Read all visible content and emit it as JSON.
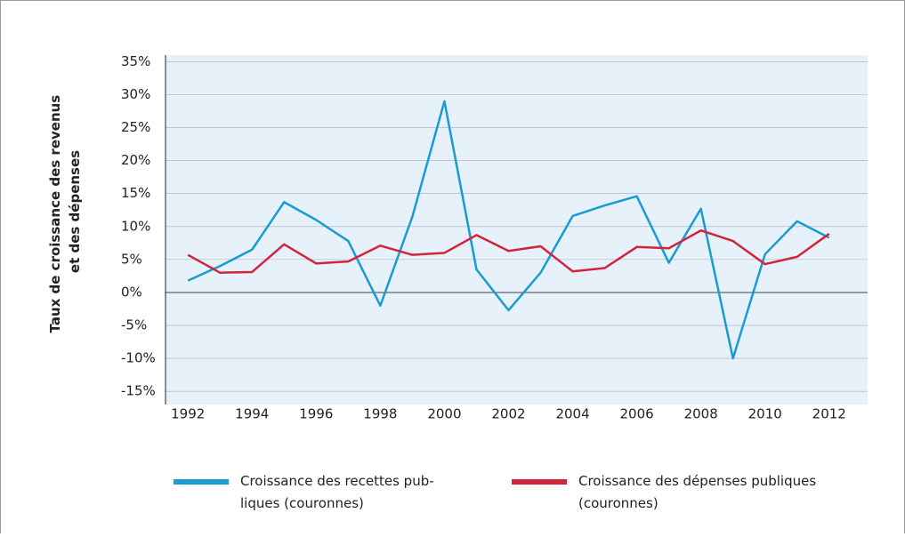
{
  "chart_data": {
    "type": "line",
    "ylabel": [
      "Taux de croissance des revenus",
      "et des dépenses"
    ],
    "x": [
      1992,
      1993,
      1994,
      1995,
      1996,
      1997,
      1998,
      1999,
      2000,
      2001,
      2002,
      2003,
      2004,
      2005,
      2006,
      2007,
      2008,
      2009,
      2010,
      2011,
      2012
    ],
    "series": [
      {
        "name": [
          "Croissance des recettes pub-",
          "liques (couronnes)"
        ],
        "color": "#1a9bd2",
        "values": [
          1.8,
          4,
          6.5,
          13.7,
          11,
          7.8,
          -2,
          11.5,
          29,
          3.5,
          -2.7,
          3,
          11.6,
          13.2,
          14.6,
          4.5,
          12.7,
          -10,
          5.8,
          10.8,
          8.3
        ]
      },
      {
        "name": [
          "Croissance des dépenses publiques",
          "(couronnes)"
        ],
        "color": "#d2243a",
        "values": [
          5.7,
          3,
          3.1,
          7.3,
          4.4,
          4.7,
          7.1,
          5.7,
          6,
          8.7,
          6.3,
          7,
          3.2,
          3.7,
          6.9,
          6.7,
          9.4,
          7.8,
          4.3,
          5.4,
          8.9
        ]
      }
    ],
    "xlim": [
      1991.3,
      2013.2
    ],
    "xticks": [
      1992,
      1994,
      1996,
      1998,
      2000,
      2002,
      2004,
      2006,
      2008,
      2010,
      2012
    ],
    "ylim": [
      -17,
      36
    ],
    "yticks": [
      {
        "value": 35,
        "label": "35%"
      },
      {
        "value": 30,
        "label": "30%"
      },
      {
        "value": 25,
        "label": "25%"
      },
      {
        "value": 20,
        "label": "20%"
      },
      {
        "value": 15,
        "label": "15%"
      },
      {
        "value": 10,
        "label": "10%"
      },
      {
        "value": 5,
        "label": "5%"
      },
      {
        "value": 0,
        "label": "0%"
      },
      {
        "value": -5,
        "label": "-5%"
      },
      {
        "value": -10,
        "label": "-10%"
      },
      {
        "value": -15,
        "label": "-15%"
      }
    ],
    "grid": true
  }
}
